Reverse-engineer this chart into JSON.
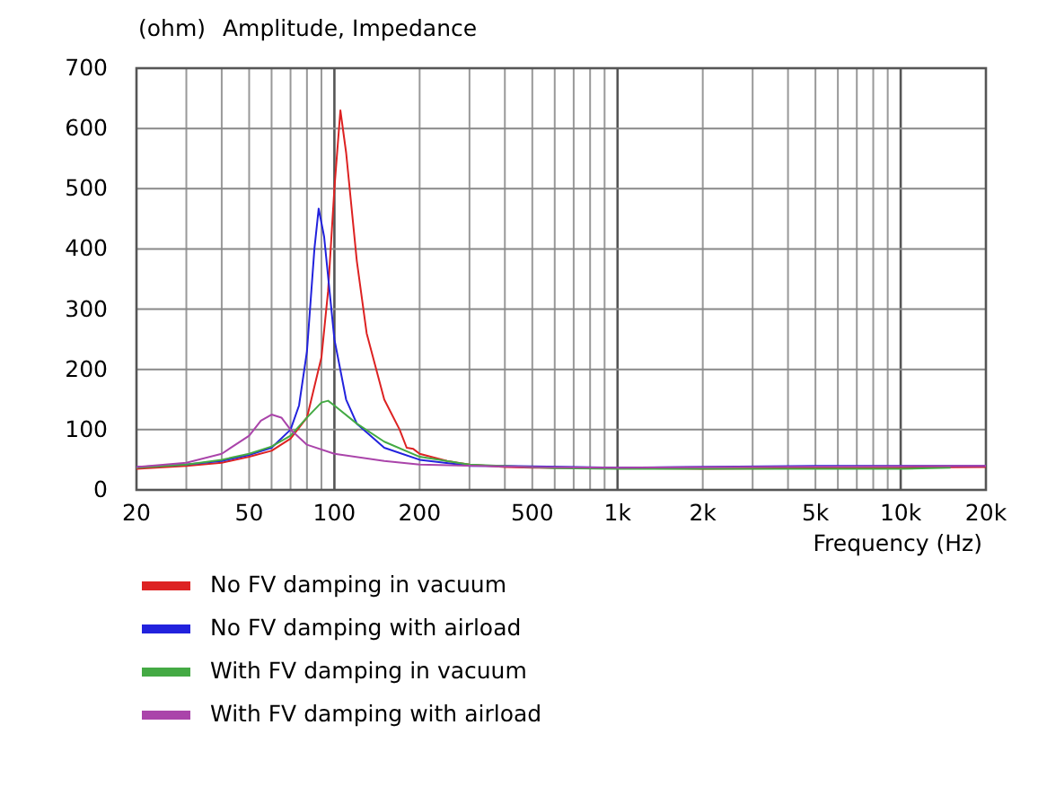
{
  "chart_data": {
    "type": "line",
    "title": "Amplitude, Impedance",
    "ylabel": "(ohm)",
    "xlabel": "Frequency  (Hz)",
    "log": "x",
    "grid": true,
    "legend": "bottom",
    "line_style": "solid",
    "xlim": [
      20,
      20000
    ],
    "ylim": [
      0,
      700
    ],
    "xticks": [
      20,
      {
        "value": 30,
        "label": null
      },
      {
        "value": 40,
        "label": null
      },
      50,
      {
        "value": 60,
        "label": null
      },
      {
        "value": 70,
        "label": null
      },
      {
        "value": 80,
        "label": null
      },
      {
        "value": 90,
        "label": null
      },
      100,
      200,
      {
        "value": 300,
        "label": null
      },
      {
        "value": 400,
        "label": null
      },
      500,
      {
        "value": 600,
        "label": null
      },
      {
        "value": 700,
        "label": null
      },
      {
        "value": 800,
        "label": null
      },
      {
        "value": 900,
        "label": null
      },
      {
        "value": 1000,
        "label": "1k"
      },
      {
        "value": 2000,
        "label": "2k"
      },
      {
        "value": 3000,
        "label": null
      },
      {
        "value": 4000,
        "label": null
      },
      {
        "value": 5000,
        "label": "5k"
      },
      {
        "value": 6000,
        "label": null
      },
      {
        "value": 7000,
        "label": null
      },
      {
        "value": 8000,
        "label": null
      },
      {
        "value": 9000,
        "label": null
      },
      {
        "value": 10000,
        "label": "10k"
      },
      {
        "value": 20000,
        "label": "20k"
      }
    ],
    "yticks": [
      0,
      100,
      200,
      300,
      400,
      500,
      600,
      700
    ],
    "series": [
      {
        "name": "No FV damping in vacuum",
        "color": "#dd2222",
        "x": [
          20,
          30,
          40,
          50,
          60,
          70,
          80,
          90,
          95,
          100,
          105,
          110,
          120,
          130,
          150,
          170,
          180,
          190,
          200,
          250,
          300,
          400,
          500,
          1000,
          2000,
          5000,
          10000,
          20000
        ],
        "values": [
          35,
          40,
          45,
          55,
          65,
          85,
          120,
          220,
          330,
          500,
          630,
          560,
          380,
          260,
          150,
          100,
          70,
          68,
          60,
          48,
          42,
          38,
          37,
          36,
          35,
          36,
          37,
          38
        ]
      },
      {
        "name": "No FV damping with airload",
        "color": "#2222dd",
        "x": [
          20,
          30,
          40,
          50,
          60,
          70,
          75,
          80,
          85,
          88,
          92,
          100,
          110,
          120,
          150,
          200,
          300,
          400,
          1000,
          5000,
          10000,
          20000
        ],
        "values": [
          38,
          42,
          48,
          58,
          70,
          100,
          140,
          230,
          400,
          467,
          420,
          250,
          150,
          110,
          70,
          50,
          40,
          40,
          37,
          40,
          40,
          40
        ]
      },
      {
        "name": "With FV damping in vacuum",
        "color": "#44aa44",
        "x": [
          20,
          30,
          40,
          50,
          60,
          70,
          80,
          90,
          95,
          100,
          120,
          150,
          200,
          300,
          600,
          1000,
          10000,
          15000
        ],
        "values": [
          37,
          42,
          50,
          60,
          72,
          90,
          120,
          145,
          148,
          140,
          110,
          80,
          55,
          42,
          36,
          35,
          35,
          37
        ]
      },
      {
        "name": "With FV damping with airload",
        "color": "#aa44aa",
        "x": [
          20,
          30,
          40,
          50,
          55,
          60,
          65,
          70,
          80,
          100,
          150,
          200,
          500,
          1000,
          20000
        ],
        "values": [
          38,
          45,
          60,
          90,
          115,
          125,
          120,
          100,
          75,
          60,
          48,
          42,
          38,
          37,
          40
        ]
      }
    ]
  }
}
